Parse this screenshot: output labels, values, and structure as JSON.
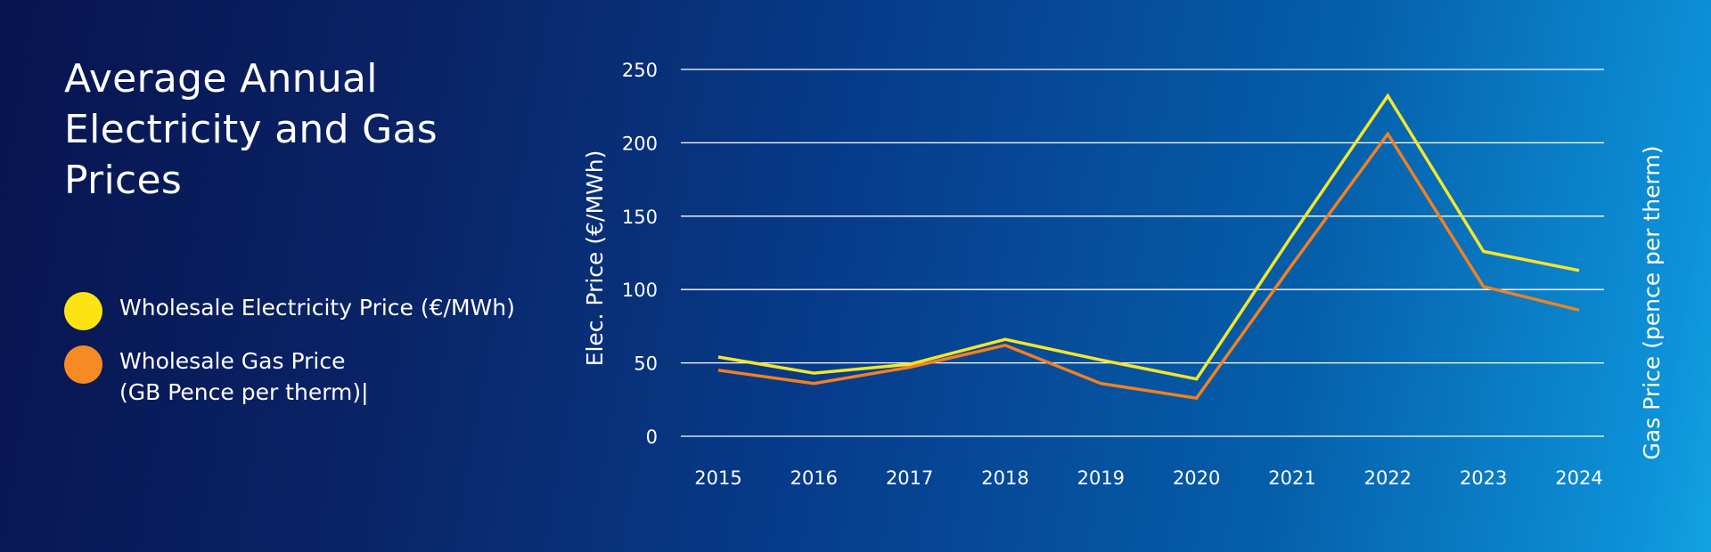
{
  "colors": {
    "electricity": "#f3e62c",
    "gas": "#f28021",
    "grid": "#ffffff"
  },
  "title": "Average Annual Electricity and Gas Prices",
  "legend": [
    {
      "label": "Wholesale Electricity Price (€/MWh)",
      "sublabel": "",
      "color": "#fde311"
    },
    {
      "label": "Wholesale Gas Price",
      "sublabel": "(GB Pence per therm)|",
      "color": "#f68a24"
    }
  ],
  "chart_data": {
    "type": "line",
    "title": "Average Annual Electricity and Gas Prices",
    "x": [
      "2015",
      "2016",
      "2017",
      "2018",
      "2019",
      "2020",
      "2021",
      "2022",
      "2023",
      "2024"
    ],
    "series": [
      {
        "name": "Wholesale Electricity Price (€/MWh)",
        "values": [
          54,
          43,
          49,
          66,
          52,
          39,
          137,
          232,
          126,
          113
        ]
      },
      {
        "name": "Wholesale Gas Price (GB Pence per therm)",
        "values": [
          45,
          36,
          47,
          62,
          36,
          26,
          117,
          206,
          102,
          86
        ]
      }
    ],
    "ylabel": "Elec. Price (€/MWh)",
    "y2label": "Gas Price (pence per therm)",
    "ylim": [
      0,
      250
    ],
    "yticks": [
      "0",
      "50",
      "100",
      "150",
      "200",
      "250"
    ],
    "grid": true
  }
}
